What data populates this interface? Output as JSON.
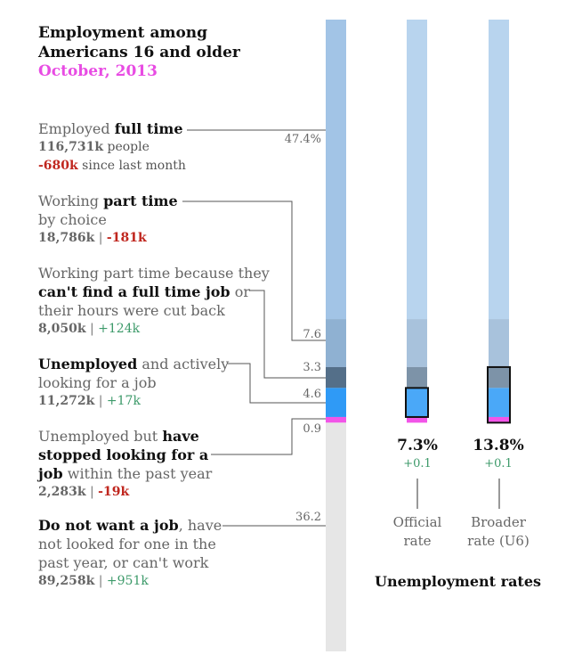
{
  "header": {
    "title": "Employment among Americans 16 and older",
    "subtitle": "October, 2013"
  },
  "chart_data": [
    {
      "type": "bar",
      "stacked": true,
      "orientation": "vertical",
      "categories": [
        "Employed full time",
        "Working part time by choice",
        "Working part time because they can't find a full time job",
        "Unemployed and actively looking",
        "Unemployed but have stopped looking",
        "Do not want a job"
      ],
      "values": [
        47.4,
        7.6,
        3.3,
        4.6,
        0.9,
        36.2
      ],
      "colors": [
        "#a2c4e6",
        "#8fb1d2",
        "#546f89",
        "#2f9af6",
        "#f255e8",
        "#e6e6e6"
      ],
      "tick_labels": [
        "47.4%",
        "7.6",
        "3.3",
        "4.6",
        "0.9",
        "36.2"
      ],
      "people_k": [
        "116,731k",
        "18,786k",
        "8,050k",
        "11,272k",
        "2,283k",
        "89,258k"
      ],
      "change_k": [
        "-680k",
        "-181k",
        "+124k",
        "+17k",
        "-19k",
        "+951k"
      ]
    },
    {
      "type": "bar",
      "title": "Unemployment rates",
      "categories": [
        "Official rate",
        "Broader rate (U6)"
      ],
      "values": [
        7.3,
        13.8
      ],
      "value_labels": [
        "7.3%",
        "13.8%"
      ],
      "changes": [
        "+0.1",
        "+0.1"
      ]
    }
  ],
  "labels": {
    "full_time": {
      "pre": "Employed ",
      "bold": "full time",
      "people": "116,731k",
      "people_suffix": " people",
      "change": "-680k",
      "change_suffix": " since last month"
    },
    "part_choice": {
      "pre": "Working ",
      "bold": "part time",
      "line2": "by choice",
      "people": "18,786k",
      "sep": " | ",
      "change": "-181k"
    },
    "part_forced": {
      "line1": "Working part time because they",
      "bold": "can't find a full time job",
      "post": " or",
      "line3": "their hours were cut back",
      "people": "8,050k",
      "sep": " | ",
      "change": "+124k"
    },
    "unemployed": {
      "bold": "Unemployed",
      "post": " and actively",
      "line2": "looking for a job",
      "people": "11,272k",
      "sep": " | ",
      "change": "+17k"
    },
    "stopped": {
      "pre": "Unemployed but ",
      "bold1": "have",
      "bold2": "stopped looking for a",
      "bold3": "job",
      "post": " within the past year",
      "people": "2,283k",
      "sep": " | ",
      "change": "-19k"
    },
    "not_want": {
      "bold": "Do not want a job",
      "post": ", have",
      "line2": "not looked for one in the",
      "line3": "past year, or can't work",
      "people": "89,258k",
      "sep": " | ",
      "change": "+951k"
    }
  },
  "rates": {
    "title": "Unemployment rates",
    "official": {
      "value": "7.3%",
      "change": "+0.1",
      "name1": "Official",
      "name2": "rate"
    },
    "broader": {
      "value": "13.8%",
      "change": "+0.1",
      "name1": "Broader",
      "name2": "rate (U6)"
    }
  }
}
